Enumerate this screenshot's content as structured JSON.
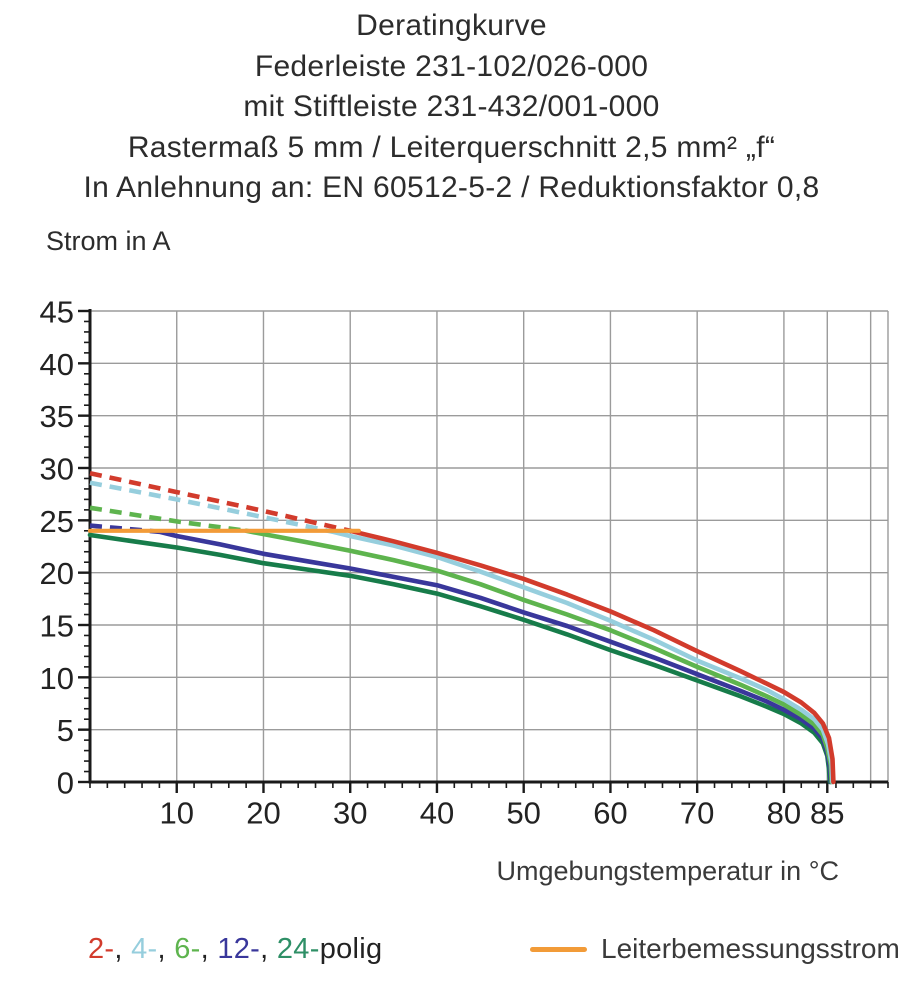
{
  "title": {
    "lines": [
      "Deratingkurve",
      "Federleiste 231-102/026-000",
      "mit Stiftleiste 231-432/001-000",
      "Rastermaß 5 mm / Leiterquerschnitt 2,5 mm² „f“",
      "In Anlehnung an: EN 60512-5-2 / Reduktionsfaktor 0,8"
    ]
  },
  "chart": {
    "y_title": "Strom in A",
    "x_title": "Umgebungstemperatur in °C"
  },
  "chart_data": {
    "type": "line",
    "title": "Deratingkurve",
    "xlabel": "Umgebungstemperatur in °C",
    "ylabel": "Strom in A",
    "xlim": [
      0,
      92
    ],
    "ylim": [
      0,
      45
    ],
    "grid": true,
    "grid_color": "#9b9b9b",
    "axis_color": "#1a1a1a",
    "x_major_ticks": [
      10,
      20,
      30,
      40,
      50,
      60,
      70,
      80,
      85
    ],
    "y_major_ticks": [
      0,
      5,
      10,
      15,
      20,
      25,
      30,
      35,
      40,
      45
    ],
    "x_gridlines": [
      10,
      20,
      30,
      40,
      50,
      60,
      70,
      80,
      85,
      90
    ],
    "y_gridlines": [
      5,
      10,
      15,
      20,
      25,
      30,
      35,
      40,
      45
    ],
    "x_minor_step": 2,
    "y_minor_step": 1,
    "series": [
      {
        "name": "24-polig",
        "color": "#177c4a",
        "solid_points": [
          [
            0,
            23.6
          ],
          [
            5,
            23.0
          ],
          [
            10,
            22.4
          ],
          [
            15,
            21.7
          ],
          [
            20,
            20.9
          ],
          [
            25,
            20.3
          ],
          [
            30,
            19.7
          ],
          [
            35,
            18.9
          ],
          [
            40,
            18.0
          ],
          [
            45,
            16.8
          ],
          [
            50,
            15.5
          ],
          [
            55,
            14.1
          ],
          [
            60,
            12.6
          ],
          [
            65,
            11.2
          ],
          [
            70,
            9.7
          ],
          [
            75,
            8.2
          ],
          [
            78,
            7.2
          ],
          [
            80,
            6.5
          ],
          [
            82,
            5.6
          ],
          [
            83.5,
            4.7
          ],
          [
            84.5,
            3.7
          ],
          [
            85,
            2.5
          ],
          [
            85.2,
            1.2
          ],
          [
            85.3,
            0
          ]
        ]
      },
      {
        "name": "12-polig",
        "color": "#39379b",
        "dashed_points": [
          [
            0,
            24.5
          ],
          [
            4,
            24.2
          ],
          [
            8,
            23.9
          ]
        ],
        "solid_points": [
          [
            8,
            23.9
          ],
          [
            10,
            23.5
          ],
          [
            15,
            22.7
          ],
          [
            20,
            21.8
          ],
          [
            25,
            21.1
          ],
          [
            30,
            20.4
          ],
          [
            35,
            19.6
          ],
          [
            40,
            18.8
          ],
          [
            45,
            17.6
          ],
          [
            50,
            16.2
          ],
          [
            55,
            14.9
          ],
          [
            60,
            13.4
          ],
          [
            65,
            11.9
          ],
          [
            70,
            10.3
          ],
          [
            75,
            8.7
          ],
          [
            78,
            7.7
          ],
          [
            80,
            6.9
          ],
          [
            82,
            6.0
          ],
          [
            83.5,
            5.1
          ],
          [
            84.5,
            4.1
          ],
          [
            85,
            2.8
          ],
          [
            85.3,
            1.4
          ],
          [
            85.4,
            0
          ]
        ]
      },
      {
        "name": "6-polig",
        "color": "#5eb44e",
        "dashed_points": [
          [
            0,
            26.2
          ],
          [
            10,
            24.9
          ],
          [
            18,
            24.0
          ]
        ],
        "solid_points": [
          [
            18,
            24.0
          ],
          [
            25,
            22.9
          ],
          [
            30,
            22.1
          ],
          [
            35,
            21.2
          ],
          [
            40,
            20.2
          ],
          [
            45,
            18.9
          ],
          [
            50,
            17.4
          ],
          [
            55,
            16.0
          ],
          [
            60,
            14.5
          ],
          [
            65,
            12.8
          ],
          [
            70,
            11.0
          ],
          [
            75,
            9.3
          ],
          [
            78,
            8.2
          ],
          [
            80,
            7.4
          ],
          [
            82,
            6.4
          ],
          [
            83.5,
            5.5
          ],
          [
            84.5,
            4.5
          ],
          [
            85,
            3.2
          ],
          [
            85.4,
            1.6
          ],
          [
            85.5,
            0
          ]
        ]
      },
      {
        "name": "4-polig",
        "color": "#96cedd",
        "dashed_points": [
          [
            0,
            28.6
          ],
          [
            10,
            27.0
          ],
          [
            20,
            25.3
          ],
          [
            28,
            23.9
          ]
        ],
        "solid_points": [
          [
            28,
            23.9
          ],
          [
            30,
            23.5
          ],
          [
            35,
            22.6
          ],
          [
            40,
            21.5
          ],
          [
            45,
            20.1
          ],
          [
            50,
            18.6
          ],
          [
            55,
            17.1
          ],
          [
            60,
            15.4
          ],
          [
            65,
            13.6
          ],
          [
            70,
            11.6
          ],
          [
            75,
            9.9
          ],
          [
            78,
            8.8
          ],
          [
            80,
            7.9
          ],
          [
            82,
            6.9
          ],
          [
            83.5,
            6.0
          ],
          [
            84.5,
            5.0
          ],
          [
            85.1,
            3.6
          ],
          [
            85.5,
            1.8
          ],
          [
            85.6,
            0
          ]
        ]
      },
      {
        "name": "2-polig",
        "color": "#d23b2c",
        "dashed_points": [
          [
            0,
            29.5
          ],
          [
            10,
            27.7
          ],
          [
            20,
            25.9
          ],
          [
            30,
            24.0
          ]
        ],
        "solid_points": [
          [
            30,
            24.0
          ],
          [
            35,
            23.0
          ],
          [
            40,
            21.9
          ],
          [
            45,
            20.7
          ],
          [
            50,
            19.4
          ],
          [
            55,
            17.9
          ],
          [
            60,
            16.3
          ],
          [
            65,
            14.5
          ],
          [
            70,
            12.5
          ],
          [
            75,
            10.6
          ],
          [
            78,
            9.4
          ],
          [
            80,
            8.6
          ],
          [
            82,
            7.6
          ],
          [
            83.5,
            6.6
          ],
          [
            84.5,
            5.6
          ],
          [
            85.2,
            4.2
          ],
          [
            85.6,
            2.2
          ],
          [
            85.7,
            0
          ]
        ]
      },
      {
        "name": "Leiterbemessungsstrom",
        "color": "#f29b38",
        "width": 4.2,
        "solid_points": [
          [
            0,
            24
          ],
          [
            31,
            24
          ]
        ]
      }
    ]
  },
  "legend": {
    "poles": [
      {
        "label": "2-",
        "color": "#d23b2c"
      },
      {
        "label": "4-",
        "color": "#96cedd"
      },
      {
        "label": "6-",
        "color": "#5eb44e"
      },
      {
        "label": "12-",
        "color": "#39379b"
      },
      {
        "label": "24-",
        "color": "#2e8f66"
      }
    ],
    "separator": ", ",
    "poles_suffix": "polig",
    "poles_suffix_color": "#222222",
    "rated_current_label": "Leiterbemessungsstrom",
    "rated_current_color": "#f29b38"
  }
}
